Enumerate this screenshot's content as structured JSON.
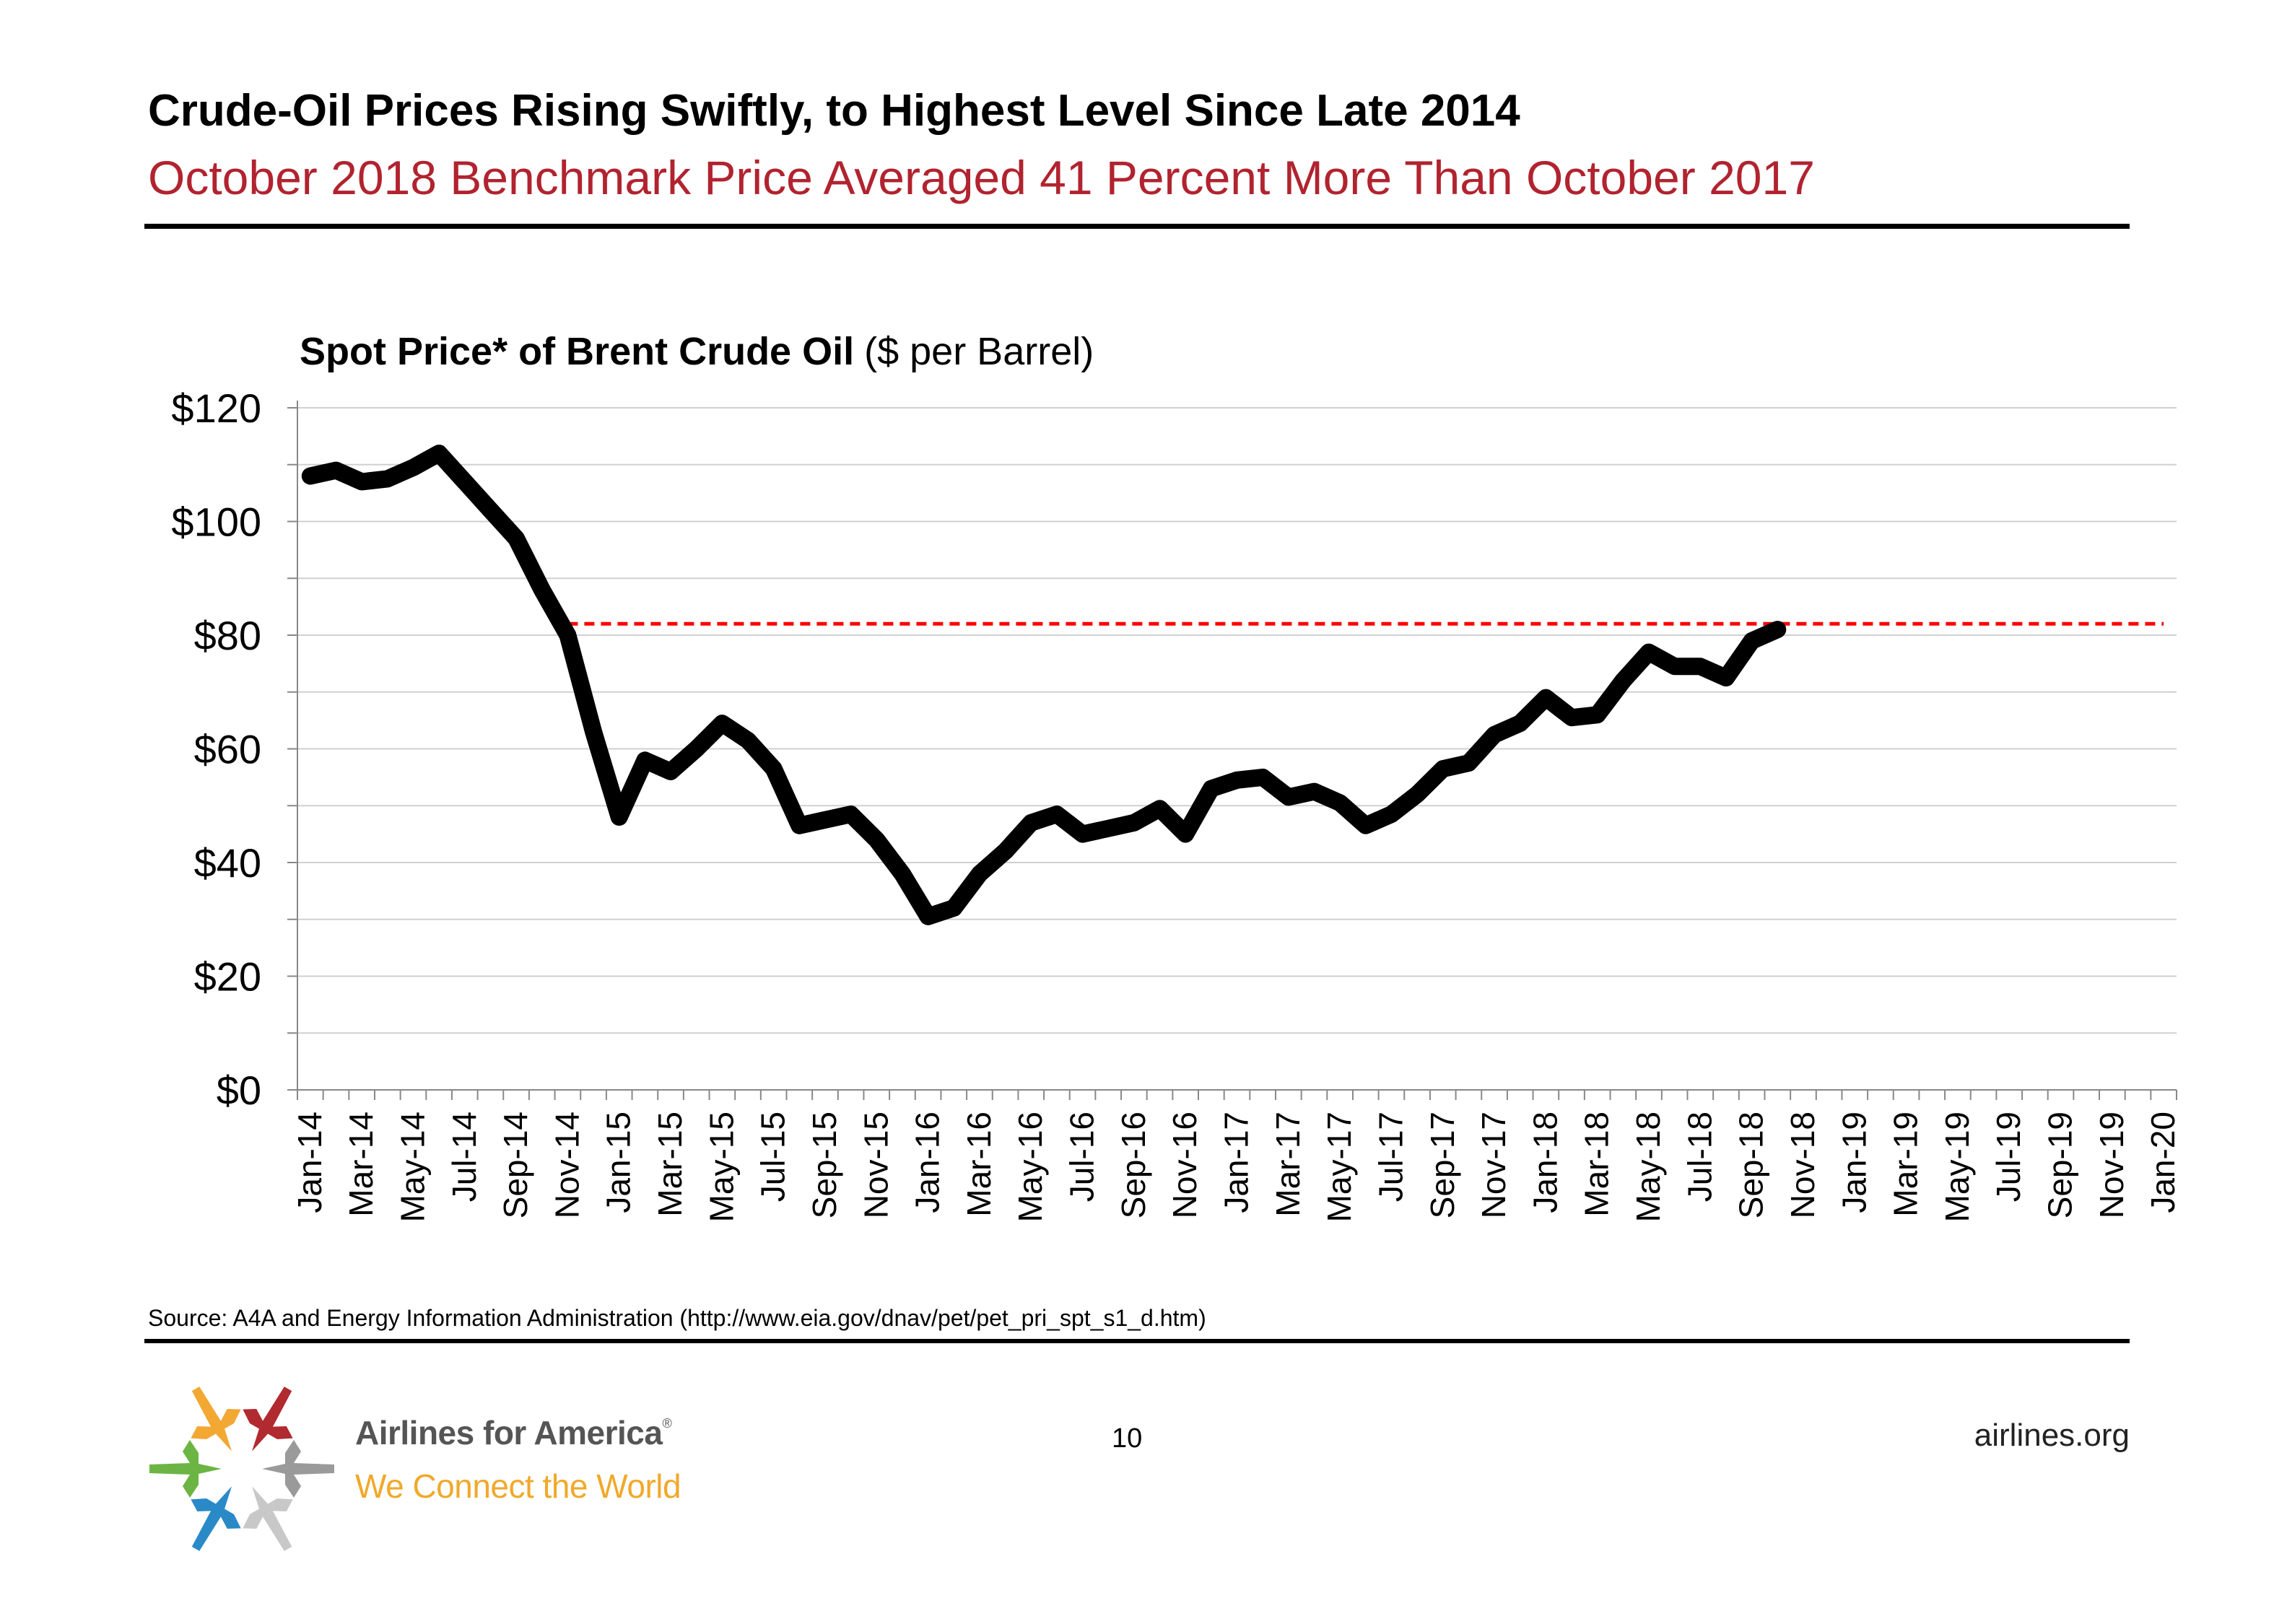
{
  "slide": {
    "title": "Crude-Oil Prices Rising Swiftly, to Highest Level Since Late 2014",
    "subtitle": "October 2018 Benchmark Price Averaged 41 Percent More Than October 2017",
    "source": "Source: A4A and Energy Information Administration (http://www.eia.gov/dnav/pet/pet_pri_spt_s1_d.htm)",
    "page_number": "10",
    "website": "airlines.org",
    "brand_name": "Airlines for America",
    "brand_mark": "®",
    "brand_tagline": "We Connect the World"
  },
  "chart_data": {
    "type": "line",
    "title_bold": "Spot Price* of Brent Crude Oil",
    "title_normal": "($ per Barrel)",
    "xlabel": "",
    "ylabel": "",
    "ylim": [
      0,
      120
    ],
    "yticks": [
      0,
      20,
      40,
      60,
      80,
      100,
      120
    ],
    "ytick_labels": [
      "$0",
      "$20",
      "$40",
      "$60",
      "$80",
      "$100",
      "$120"
    ],
    "x_tick_labels": [
      "Jan-14",
      "Mar-14",
      "May-14",
      "Jul-14",
      "Sep-14",
      "Nov-14",
      "Jan-15",
      "Mar-15",
      "May-15",
      "Jul-15",
      "Sep-15",
      "Nov-15",
      "Jan-16",
      "Mar-16",
      "May-16",
      "Jul-16",
      "Sep-16",
      "Nov-16",
      "Jan-17",
      "Mar-17",
      "May-17",
      "Jul-17",
      "Sep-17",
      "Nov-17",
      "Jan-18",
      "Mar-18",
      "May-18",
      "Jul-18",
      "Sep-18",
      "Nov-18",
      "Jan-19",
      "Mar-19",
      "May-19",
      "Jul-19",
      "Sep-19",
      "Nov-19",
      "Jan-20"
    ],
    "x_range_months": 73,
    "series": [
      {
        "name": "Brent spot price",
        "color": "#000000",
        "start": "Jan-14",
        "values": [
          108,
          109,
          107,
          107.5,
          109.5,
          112,
          107,
          102,
          97,
          88,
          80,
          63,
          48,
          58,
          56,
          60,
          64.5,
          61.5,
          56.5,
          46.5,
          47.5,
          48.5,
          44,
          38,
          30.5,
          32,
          38,
          42,
          47,
          48.5,
          45,
          46,
          47,
          49.5,
          45,
          53,
          54.5,
          55,
          51.5,
          52.5,
          50.5,
          46.5,
          48.5,
          52,
          56.5,
          57.5,
          62.5,
          64.5,
          69,
          65.5,
          66,
          72,
          77,
          74.5,
          74.5,
          72.5,
          79,
          81
        ]
      }
    ],
    "reference_line": {
      "value": 82,
      "from": "Nov-14",
      "to": "Jan-20",
      "color": "#ff0000",
      "style": "dashed"
    },
    "gridlines": "horizontal",
    "legend": "none"
  }
}
